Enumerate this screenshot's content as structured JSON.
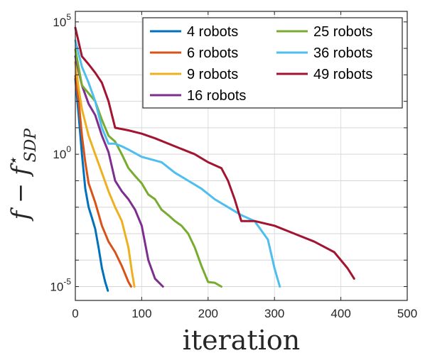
{
  "chart_data": {
    "type": "line",
    "y_scale": "log",
    "grid": true,
    "legend_placement": "top-right",
    "legend_columns": 2,
    "xlabel": "iteration",
    "ylabel_main": "f − f",
    "ylabel_star": "⋆",
    "ylabel_sub": "SDP",
    "xlim": [
      0,
      500
    ],
    "ylim": [
      3e-06,
      250000
    ],
    "xticks": [
      {
        "value": 0,
        "label": "0"
      },
      {
        "value": 100,
        "label": "100"
      },
      {
        "value": 200,
        "label": "200"
      },
      {
        "value": 300,
        "label": "300"
      },
      {
        "value": 400,
        "label": "400"
      },
      {
        "value": 500,
        "label": "500"
      }
    ],
    "yticks": [
      {
        "value": 1e-05,
        "base": "10",
        "exp": "-5"
      },
      {
        "value": 1,
        "base": "10",
        "exp": "0"
      },
      {
        "value": 100000,
        "base": "10",
        "exp": "5"
      }
    ],
    "series": [
      {
        "name": "4 robots",
        "color": "#0072BD",
        "points": [
          [
            0,
            700
          ],
          [
            5,
            30
          ],
          [
            10,
            1.0
          ],
          [
            15,
            0.05
          ],
          [
            20,
            0.01
          ],
          [
            25,
            0.004
          ],
          [
            30,
            0.0015
          ],
          [
            35,
            0.0003
          ],
          [
            40,
            5e-05
          ],
          [
            45,
            1.5e-05
          ],
          [
            49,
            7e-06
          ]
        ]
      },
      {
        "name": "6 robots",
        "color": "#D95319",
        "points": [
          [
            0,
            900
          ],
          [
            5,
            100
          ],
          [
            10,
            5
          ],
          [
            15,
            0.5
          ],
          [
            20,
            0.08
          ],
          [
            30,
            0.015
          ],
          [
            40,
            0.002
          ],
          [
            50,
            0.0005
          ],
          [
            60,
            0.0002
          ],
          [
            70,
            6e-05
          ],
          [
            80,
            1.5e-05
          ],
          [
            84,
            1e-05
          ]
        ]
      },
      {
        "name": "9 robots",
        "color": "#EDB120",
        "points": [
          [
            0,
            3000
          ],
          [
            5,
            300
          ],
          [
            10,
            50
          ],
          [
            20,
            5
          ],
          [
            30,
            1.0
          ],
          [
            40,
            0.2
          ],
          [
            50,
            0.04
          ],
          [
            60,
            0.01
          ],
          [
            70,
            0.003
          ],
          [
            80,
            0.0003
          ],
          [
            85,
            4e-05
          ],
          [
            89,
            1e-05
          ]
        ]
      },
      {
        "name": "16 robots",
        "color": "#7E2F8E",
        "points": [
          [
            0,
            5000
          ],
          [
            10,
            400
          ],
          [
            20,
            80
          ],
          [
            30,
            30
          ],
          [
            40,
            5
          ],
          [
            50,
            1.2
          ],
          [
            60,
            0.1
          ],
          [
            70,
            0.04
          ],
          [
            80,
            0.02
          ],
          [
            90,
            0.008
          ],
          [
            100,
            0.002
          ],
          [
            110,
            0.0001
          ],
          [
            120,
            2e-05
          ],
          [
            132,
            1e-05
          ]
        ]
      },
      {
        "name": "25 robots",
        "color": "#77AC30",
        "points": [
          [
            0,
            9000
          ],
          [
            10,
            400
          ],
          [
            20,
            200
          ],
          [
            30,
            100
          ],
          [
            40,
            20
          ],
          [
            50,
            5
          ],
          [
            60,
            3
          ],
          [
            70,
            1
          ],
          [
            80,
            0.3
          ],
          [
            90,
            0.15
          ],
          [
            100,
            0.08
          ],
          [
            110,
            0.03
          ],
          [
            120,
            0.02
          ],
          [
            130,
            0.008
          ],
          [
            140,
            0.005
          ],
          [
            150,
            0.003
          ],
          [
            160,
            0.002
          ],
          [
            170,
            0.001
          ],
          [
            180,
            0.0003
          ],
          [
            190,
            6e-05
          ],
          [
            200,
            1.5e-05
          ],
          [
            210,
            1.4e-05
          ],
          [
            220,
            1e-05
          ]
        ]
      },
      {
        "name": "36 robots",
        "color": "#4DBEEE",
        "points": [
          [
            0,
            20000
          ],
          [
            10,
            2000
          ],
          [
            20,
            500
          ],
          [
            30,
            100
          ],
          [
            40,
            10
          ],
          [
            50,
            2.5
          ],
          [
            60,
            2.5
          ],
          [
            70,
            2
          ],
          [
            80,
            1.5
          ],
          [
            100,
            0.8
          ],
          [
            130,
            0.5
          ],
          [
            150,
            0.2
          ],
          [
            170,
            0.1
          ],
          [
            190,
            0.05
          ],
          [
            210,
            0.02
          ],
          [
            230,
            0.01
          ],
          [
            250,
            0.005
          ],
          [
            270,
            0.003
          ],
          [
            290,
            0.0006
          ],
          [
            300,
            5e-05
          ],
          [
            308,
            1e-05
          ]
        ]
      },
      {
        "name": "49 robots",
        "color": "#A2142F",
        "points": [
          [
            0,
            60000
          ],
          [
            10,
            5000
          ],
          [
            20,
            2500
          ],
          [
            30,
            1200
          ],
          [
            40,
            500
          ],
          [
            50,
            100
          ],
          [
            60,
            10
          ],
          [
            80,
            8
          ],
          [
            100,
            6
          ],
          [
            120,
            4
          ],
          [
            150,
            2
          ],
          [
            180,
            1
          ],
          [
            200,
            0.5
          ],
          [
            220,
            0.3
          ],
          [
            230,
            0.1
          ],
          [
            240,
            0.02
          ],
          [
            250,
            0.003
          ],
          [
            270,
            0.003
          ],
          [
            300,
            0.002
          ],
          [
            330,
            0.001
          ],
          [
            360,
            0.0005
          ],
          [
            390,
            0.0002
          ],
          [
            410,
            5e-05
          ],
          [
            420,
            2e-05
          ]
        ]
      }
    ]
  }
}
